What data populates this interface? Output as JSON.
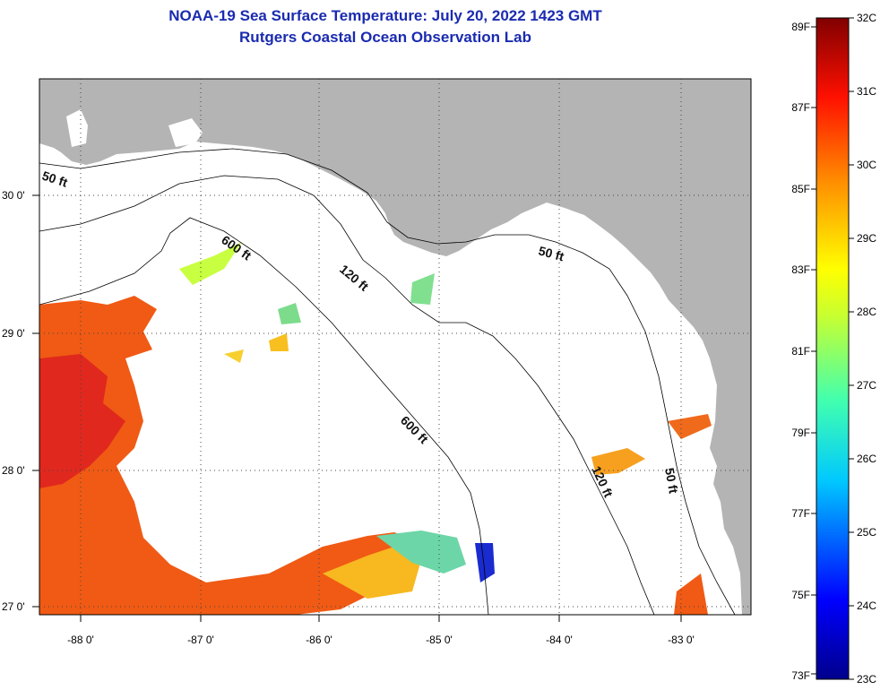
{
  "title": {
    "line1": "NOAA-19 Sea Surface Temperature:  July 20, 2022 1423 GMT",
    "line2": "Rutgers Coastal Ocean Observation Lab"
  },
  "axes": {
    "lon_labels": [
      "-88 0'",
      "-87 0'",
      "-86 0'",
      "-85 0'",
      "-84 0'",
      "-83 0'"
    ],
    "lat_labels": [
      "30 0'",
      "29 0'",
      "28 0'",
      "27 0'"
    ]
  },
  "isobaths": [
    {
      "label": "50 ft"
    },
    {
      "label": "600 ft"
    },
    {
      "label": "120 ft"
    },
    {
      "label": "50 ft"
    },
    {
      "label": "600 ft"
    },
    {
      "label": "120 ft"
    },
    {
      "label": "50 ft"
    }
  ],
  "colorbar": {
    "fahrenheit": [
      "89F",
      "87F",
      "85F",
      "83F",
      "81F",
      "79F",
      "77F",
      "75F",
      "73F"
    ],
    "celsius": [
      "32C",
      "31C",
      "30C",
      "29C",
      "28C",
      "27C",
      "26C",
      "25C",
      "24C",
      "23C"
    ]
  },
  "colors": {
    "land": "#b4b4b4",
    "title": "#1a2bb0",
    "warm": "#f05a14",
    "hot": "#e0281e"
  }
}
